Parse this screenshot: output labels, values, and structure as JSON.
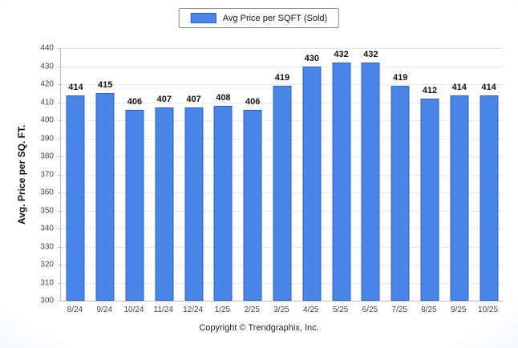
{
  "footer": {
    "text": "Copyright © Trendgraphix, Inc."
  },
  "chart_data": {
    "type": "bar",
    "title": "",
    "legend": "Avg Price per SQFT (Sold)",
    "legend_position": "top",
    "xlabel": "",
    "ylabel": "Avg. Price per SQ. FT.",
    "categories": [
      "8/24",
      "9/24",
      "10/24",
      "11/24",
      "12/24",
      "1/25",
      "2/25",
      "3/25",
      "4/25",
      "5/25",
      "6/25",
      "7/25",
      "8/25",
      "9/25",
      "10/25"
    ],
    "values": [
      414,
      415,
      406,
      407,
      407,
      408,
      406,
      419,
      430,
      432,
      432,
      419,
      412,
      414,
      414
    ],
    "ylim": [
      300,
      440
    ],
    "ytick_step": 10,
    "yticks": [
      300,
      310,
      320,
      330,
      340,
      350,
      360,
      370,
      380,
      390,
      400,
      410,
      420,
      430,
      440
    ],
    "grid": true,
    "bar_color": "#4a86e8",
    "bar_border_color": "#2f5fc4"
  }
}
